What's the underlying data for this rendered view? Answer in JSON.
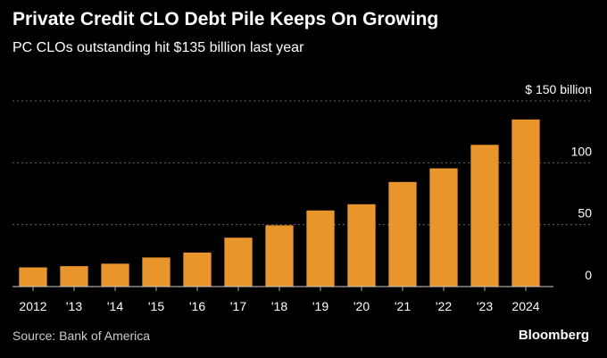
{
  "title": "Private Credit CLO Debt Pile Keeps On Growing",
  "subtitle": "PC CLOs outstanding hit $135 billion last year",
  "source": "Source: Bank of America",
  "brand": "Bloomberg",
  "colors": {
    "bar": "#E8952C",
    "background": "#000000",
    "grid": "#666666",
    "text": "#ffffff"
  },
  "chart_data": {
    "type": "bar",
    "categories": [
      "2012",
      "'13",
      "'14",
      "'15",
      "'16",
      "'17",
      "'18",
      "'19",
      "'20",
      "'21",
      "'22",
      "'23",
      "2024"
    ],
    "values": [
      15.5,
      16.5,
      18.5,
      23.5,
      27.5,
      39.5,
      49.5,
      61.5,
      66.5,
      84.5,
      95.5,
      114.5,
      135
    ],
    "ylim": [
      0,
      150
    ],
    "yticks": [
      {
        "value": 0,
        "label": "0"
      },
      {
        "value": 50,
        "label": "50"
      },
      {
        "value": 100,
        "label": "100"
      },
      {
        "value": 150,
        "label": "$ 150 billion"
      }
    ],
    "grid": true,
    "y_axis_side": "right"
  }
}
